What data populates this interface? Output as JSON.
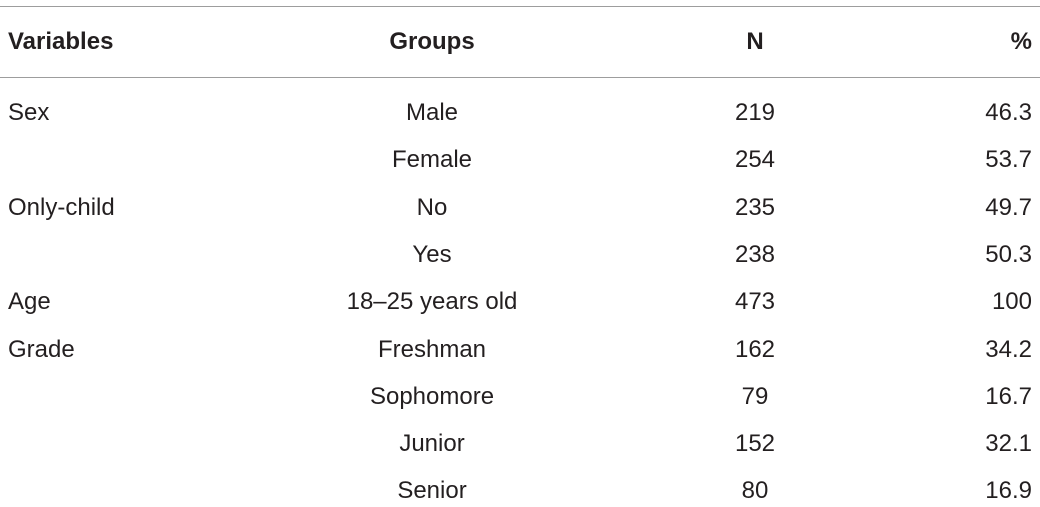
{
  "table": {
    "header": [
      "Variables",
      "Groups",
      "N",
      "%"
    ],
    "rows": [
      [
        "Sex",
        "Male",
        219,
        46.3
      ],
      [
        null,
        "Female",
        254,
        53.7
      ],
      [
        "Only-child",
        "No",
        235,
        49.7
      ],
      [
        null,
        "Yes",
        238,
        50.3
      ],
      [
        "Age",
        "18–25 years old",
        473,
        100
      ],
      [
        "Grade",
        "Freshman",
        162,
        34.2
      ],
      [
        null,
        "Sophomore",
        79,
        16.7
      ],
      [
        null,
        "Junior",
        152,
        32.1
      ],
      [
        null,
        "Senior",
        80,
        16.9
      ]
    ]
  }
}
